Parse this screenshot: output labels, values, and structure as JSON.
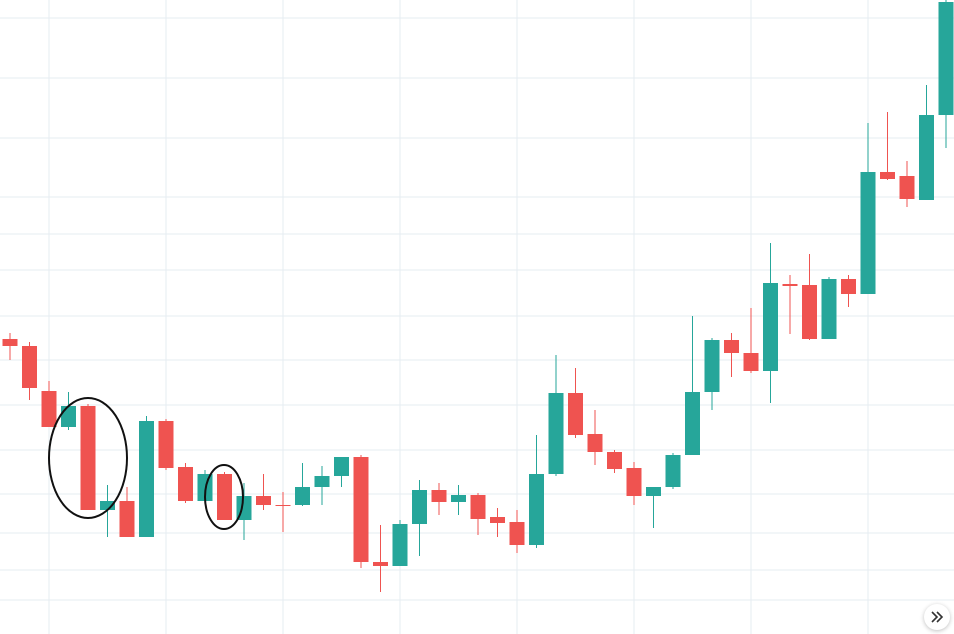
{
  "chart_data": {
    "type": "candlestick",
    "open": [
      295,
      288,
      243,
      207,
      228,
      124,
      133,
      97,
      213,
      167,
      133,
      160,
      114,
      138,
      129,
      129,
      147,
      158,
      177,
      72,
      68,
      110,
      144,
      132,
      139,
      117,
      112,
      89,
      160,
      241,
      200,
      182,
      166,
      138,
      147,
      179,
      242,
      294,
      281,
      263,
      350,
      349,
      295,
      355,
      340,
      462,
      458,
      434,
      519
    ],
    "high": [
      301,
      292,
      253,
      242,
      230,
      149,
      147,
      218,
      215,
      171,
      164,
      162,
      151,
      160,
      142,
      171,
      168,
      177,
      179,
      109,
      114,
      154,
      151,
      149,
      141,
      126,
      124,
      199,
      279,
      266,
      224,
      184,
      172,
      147,
      181,
      318,
      296,
      301,
      326,
      391,
      359,
      380,
      357,
      359,
      511,
      522,
      473,
      549,
      634
    ],
    "low": [
      274,
      234,
      207,
      204,
      124,
      97,
      97,
      97,
      164,
      131,
      131,
      114,
      94,
      124,
      102,
      128,
      129,
      147,
      66,
      42,
      68,
      78,
      119,
      119,
      99,
      97,
      81,
      86,
      158,
      196,
      169,
      161,
      129,
      106,
      145,
      179,
      224,
      257,
      261,
      231,
      300,
      294,
      295,
      327,
      340,
      454,
      427,
      434,
      486
    ],
    "close": [
      288,
      246,
      207,
      228,
      124,
      133,
      97,
      213,
      166,
      133,
      160,
      114,
      138,
      129,
      128,
      147,
      158,
      177,
      72,
      68,
      110,
      144,
      132,
      139,
      115,
      111,
      89,
      160,
      241,
      199,
      182,
      165,
      138,
      147,
      179,
      242,
      294,
      281,
      263,
      351,
      348,
      295,
      355,
      340,
      462,
      455,
      435,
      519,
      632
    ],
    "up_color": "#26a69a",
    "down_color": "#ef5350",
    "ylim": [
      0,
      634
    ]
  }
}
